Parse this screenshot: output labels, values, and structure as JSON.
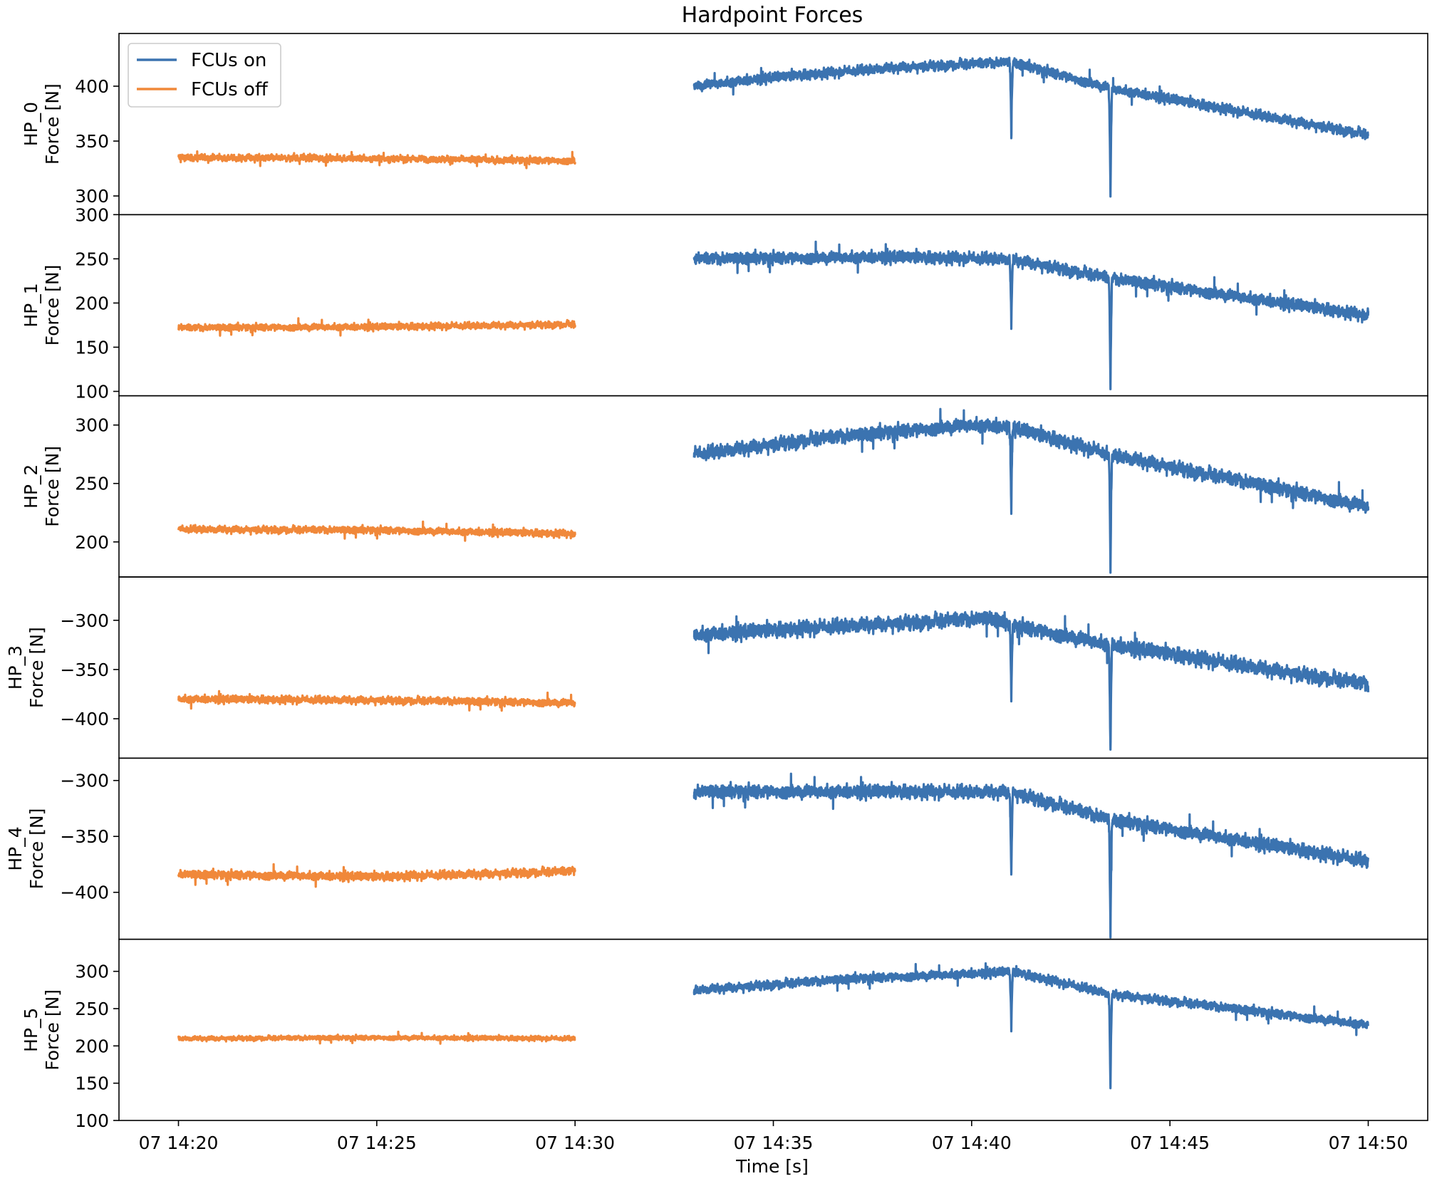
{
  "chart_data": {
    "type": "line",
    "title": "Hardpoint Forces",
    "xlabel": "Time [s]",
    "x_ticks": [
      "07 14:20",
      "07 14:25",
      "07 14:30",
      "07 14:35",
      "07 14:40",
      "07 14:45",
      "07 14:50"
    ],
    "xlim": [
      "07 14:18:30",
      "07 14:51:30"
    ],
    "legend": {
      "position": "top-left",
      "entries": [
        {
          "name": "FCUs on",
          "color": "#3b73b0"
        },
        {
          "name": "FCUs off",
          "color": "#f0883a"
        }
      ]
    },
    "series_colors": {
      "FCUs on": "#3b73b0",
      "FCUs off": "#f0883a"
    },
    "time_ranges": {
      "FCUs off": [
        "07 14:20:00",
        "07 14:30:00"
      ],
      "FCUs on": [
        "07 14:33:00",
        "07 14:50:00"
      ]
    },
    "panels": [
      {
        "ylabel_line1": "HP_0",
        "ylabel_line2": "Force [N]",
        "ylim": [
          283,
          448
        ],
        "yticks": [
          300,
          350,
          400
        ],
        "ytick_labels": [
          "300",
          "350",
          "400"
        ],
        "series": [
          {
            "name": "FCUs off",
            "x": [
              "07 14:20:00",
              "07 14:25:00",
              "07 14:30:00"
            ],
            "y": [
              335,
              334,
              332
            ],
            "noise": 4
          },
          {
            "name": "FCUs on",
            "x": [
              "07 14:33:00",
              "07 14:35:00",
              "07 14:38:00",
              "07 14:41:00",
              "07 14:43:30",
              "07 14:50:00"
            ],
            "y": [
              400,
              408,
              417,
              422,
              398,
              356
            ],
            "noise": 6
          }
        ],
        "dips": [
          {
            "time": "07 14:41:00",
            "to": 357
          },
          {
            "time": "07 14:43:30",
            "to": 300
          }
        ]
      },
      {
        "ylabel_line1": "HP_1",
        "ylabel_line2": "Force [N]",
        "ylim": [
          95,
          300
        ],
        "yticks": [
          100,
          150,
          200,
          250,
          300
        ],
        "ytick_labels": [
          "100",
          "150",
          "200",
          "250",
          "300"
        ],
        "series": [
          {
            "name": "FCUs off",
            "x": [
              "07 14:20:00",
              "07 14:25:00",
              "07 14:30:00"
            ],
            "y": [
              172,
              173,
              176
            ],
            "noise": 5
          },
          {
            "name": "FCUs on",
            "x": [
              "07 14:33:00",
              "07 14:38:00",
              "07 14:41:00",
              "07 14:43:30",
              "07 14:50:00"
            ],
            "y": [
              250,
              252,
              250,
              228,
              186
            ],
            "noise": 9
          }
        ],
        "dips": [
          {
            "time": "07 14:41:00",
            "to": 172
          },
          {
            "time": "07 14:43:30",
            "to": 104
          }
        ]
      },
      {
        "ylabel_line1": "HP_2",
        "ylabel_line2": "Force [N]",
        "ylim": [
          170,
          325
        ],
        "yticks": [
          200,
          250,
          300
        ],
        "ytick_labels": [
          "200",
          "250",
          "300"
        ],
        "series": [
          {
            "name": "FCUs off",
            "x": [
              "07 14:20:00",
              "07 14:25:00",
              "07 14:30:00"
            ],
            "y": [
              211,
              210,
              207
            ],
            "noise": 4
          },
          {
            "name": "FCUs on",
            "x": [
              "07 14:33:00",
              "07 14:36:00",
              "07 14:40:00",
              "07 14:41:00",
              "07 14:43:30",
              "07 14:50:00"
            ],
            "y": [
              275,
              288,
              300,
              298,
              275,
              230
            ],
            "noise": 8
          }
        ],
        "dips": [
          {
            "time": "07 14:41:00",
            "to": 226
          },
          {
            "time": "07 14:43:30",
            "to": 174
          }
        ]
      },
      {
        "ylabel_line1": "HP_3",
        "ylabel_line2": "Force [N]",
        "ylim": [
          -440,
          -256
        ],
        "yticks": [
          -400,
          -350,
          -300
        ],
        "ytick_labels": [
          "−400",
          "−350",
          "−300"
        ],
        "series": [
          {
            "name": "FCUs off",
            "x": [
              "07 14:20:00",
              "07 14:25:00",
              "07 14:30:00"
            ],
            "y": [
              -380,
              -381,
              -384
            ],
            "noise": 5
          },
          {
            "name": "FCUs on",
            "x": [
              "07 14:33:00",
              "07 14:37:00",
              "07 14:40:30",
              "07 14:41:00",
              "07 14:43:30",
              "07 14:50:00"
            ],
            "y": [
              -315,
              -305,
              -298,
              -305,
              -325,
              -365
            ],
            "noise": 10
          }
        ],
        "dips": [
          {
            "time": "07 14:41:00",
            "to": -382
          },
          {
            "time": "07 14:43:30",
            "to": -436
          }
        ]
      },
      {
        "ylabel_line1": "HP_4",
        "ylabel_line2": "Force [N]",
        "ylim": [
          -442,
          -280
        ],
        "yticks": [
          -400,
          -350,
          -300
        ],
        "ytick_labels": [
          "−400",
          "−350",
          "−300"
        ],
        "series": [
          {
            "name": "FCUs off",
            "x": [
              "07 14:20:00",
              "07 14:25:00",
              "07 14:30:00"
            ],
            "y": [
              -384,
              -386,
              -381
            ],
            "noise": 5
          },
          {
            "name": "FCUs on",
            "x": [
              "07 14:33:00",
              "07 14:41:00",
              "07 14:43:30",
              "07 14:50:00"
            ],
            "y": [
              -310,
              -310,
              -335,
              -372
            ],
            "noise": 8
          }
        ],
        "dips": [
          {
            "time": "07 14:41:00",
            "to": -386
          },
          {
            "time": "07 14:43:30",
            "to": -440
          }
        ]
      },
      {
        "ylabel_line1": "HP_5",
        "ylabel_line2": "Force [N]",
        "ylim": [
          100,
          343
        ],
        "yticks": [
          100,
          150,
          200,
          250,
          300
        ],
        "ytick_labels": [
          "100",
          "150",
          "200",
          "250",
          "300"
        ],
        "series": [
          {
            "name": "FCUs off",
            "x": [
              "07 14:20:00",
              "07 14:25:00",
              "07 14:30:00"
            ],
            "y": [
              210,
              211,
              210
            ],
            "noise": 4
          },
          {
            "name": "FCUs on",
            "x": [
              "07 14:33:00",
              "07 14:37:00",
              "07 14:40:30",
              "07 14:41:00",
              "07 14:43:30",
              "07 14:50:00"
            ],
            "y": [
              275,
              290,
              298,
              300,
              270,
              228
            ],
            "noise": 8
          }
        ],
        "dips": [
          {
            "time": "07 14:41:00",
            "to": 222
          },
          {
            "time": "07 14:43:30",
            "to": 140
          }
        ]
      }
    ]
  }
}
